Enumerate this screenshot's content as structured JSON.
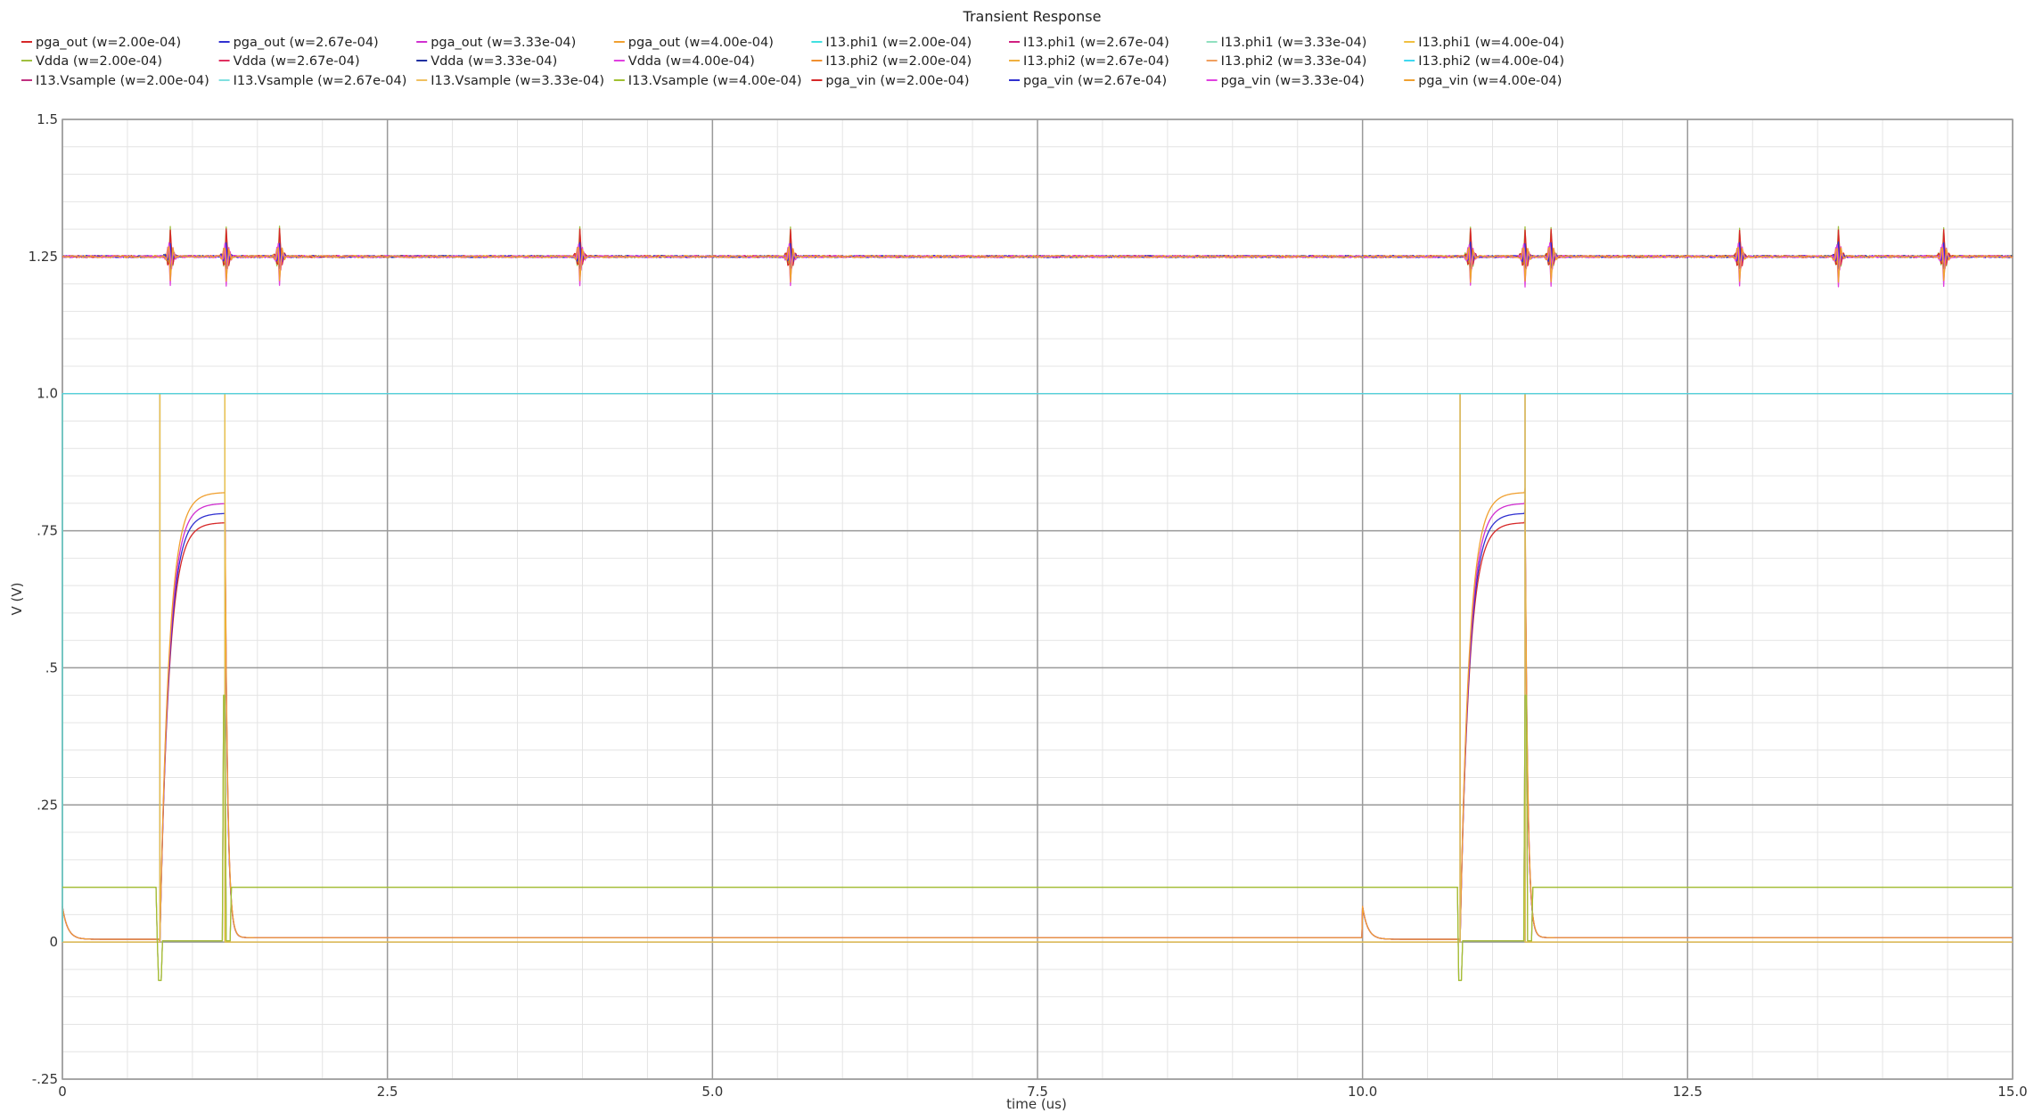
{
  "chart_data": {
    "type": "line",
    "title": "Transient Response",
    "xlabel": "time (us)",
    "ylabel": "V (V)",
    "xlim": [
      0,
      15
    ],
    "ylim": [
      -0.25,
      1.5
    ],
    "x_major_ticks": [
      0,
      2.5,
      5.0,
      7.5,
      10.0,
      12.5,
      15.0
    ],
    "x_tick_labels": [
      "0",
      "2.5",
      "5.0",
      "7.5",
      "10.0",
      "12.5",
      "15.0"
    ],
    "y_major_ticks": [
      -0.25,
      0,
      0.25,
      0.5,
      0.75,
      1.0,
      1.25,
      1.5
    ],
    "y_tick_labels": [
      "-.25",
      "0",
      ".25",
      ".5",
      ".75",
      "1.0",
      "1.25",
      "1.5"
    ],
    "grid": true,
    "legend_position": "top",
    "series": [
      {
        "name": "pga_out (w=2.00e-04)",
        "color": "#d62728",
        "kind": "out",
        "settle": 0.765
      },
      {
        "name": "pga_out (w=2.67e-04)",
        "color": "#3030d0",
        "kind": "out",
        "settle": 0.782
      },
      {
        "name": "pga_out (w=3.33e-04)",
        "color": "#d030d0",
        "kind": "out",
        "settle": 0.8
      },
      {
        "name": "pga_out (w=4.00e-04)",
        "color": "#f0a030",
        "kind": "out",
        "settle": 0.82
      },
      {
        "name": "I13.phi1 (w=2.00e-04)",
        "color": "#40e0e0",
        "kind": "phi1"
      },
      {
        "name": "I13.phi1 (w=2.67e-04)",
        "color": "#d02080",
        "kind": "phi1"
      },
      {
        "name": "I13.phi1 (w=3.33e-04)",
        "color": "#90e0c0",
        "kind": "phi1"
      },
      {
        "name": "I13.phi1 (w=4.00e-04)",
        "color": "#f0c040",
        "kind": "phi1"
      },
      {
        "name": "Vdda (w=2.00e-04)",
        "color": "#a0c040",
        "kind": "vdda"
      },
      {
        "name": "Vdda (w=2.67e-04)",
        "color": "#e03060",
        "kind": "vdda"
      },
      {
        "name": "Vdda (w=3.33e-04)",
        "color": "#2030a0",
        "kind": "vdda"
      },
      {
        "name": "Vdda (w=4.00e-04)",
        "color": "#e040e0",
        "kind": "vdda"
      },
      {
        "name": "I13.phi2 (w=2.00e-04)",
        "color": "#f09030",
        "kind": "phi2"
      },
      {
        "name": "I13.phi2 (w=2.67e-04)",
        "color": "#f0b040",
        "kind": "phi2"
      },
      {
        "name": "I13.phi2 (w=3.33e-04)",
        "color": "#f0a060",
        "kind": "phi2"
      },
      {
        "name": "I13.phi2 (w=4.00e-04)",
        "color": "#40d8f0",
        "kind": "phi2"
      },
      {
        "name": "I13.Vsample (w=2.00e-04)",
        "color": "#c03080",
        "kind": "vsample"
      },
      {
        "name": "I13.Vsample (w=2.67e-04)",
        "color": "#80e0e0",
        "kind": "vsample"
      },
      {
        "name": "I13.Vsample (w=3.33e-04)",
        "color": "#f0c060",
        "kind": "vsample"
      },
      {
        "name": "I13.Vsample (w=4.00e-04)",
        "color": "#a0c030",
        "kind": "vsample"
      },
      {
        "name": "pga_vin (w=2.00e-04)",
        "color": "#d62728",
        "kind": "vin"
      },
      {
        "name": "pga_vin (w=2.67e-04)",
        "color": "#3030d0",
        "kind": "vin"
      },
      {
        "name": "pga_vin (w=3.33e-04)",
        "color": "#e040e0",
        "kind": "vin"
      },
      {
        "name": "pga_vin (w=4.00e-04)",
        "color": "#f0a030",
        "kind": "vin"
      }
    ]
  }
}
